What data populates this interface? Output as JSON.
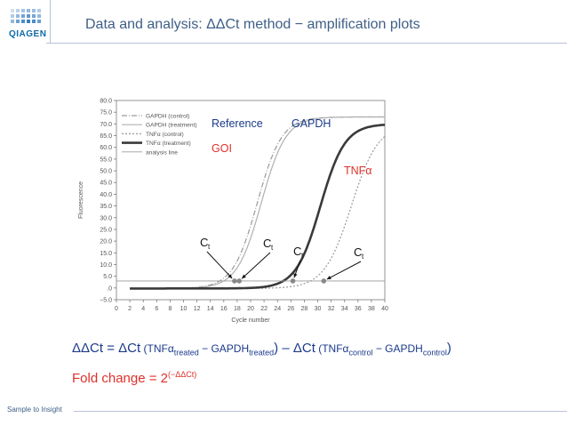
{
  "header": {
    "logo_text": "QIAGEN",
    "title": "Data and analysis: ΔΔCt method − amplification plots"
  },
  "formula": {
    "lhs": "ΔΔCt = ΔCt",
    "treated_open": " (TNFα",
    "treated_sub": "treated",
    "treated_mid": " −  GAPDH",
    "treated_sub2": "treated",
    "treated_close": ")",
    "minus": " – ΔCt",
    "control_open": " (TNFα",
    "control_sub": "control",
    "control_mid": " −  GAPDH",
    "control_sub2": "control",
    "control_close": ")"
  },
  "fold_change": {
    "text": "Fold change = 2",
    "exponent": "(−ΔΔCt)"
  },
  "footer": {
    "text": "Sample to Insight"
  },
  "chart_data": {
    "type": "line",
    "xlabel": "Cycle number",
    "ylabel": "Fluorescence",
    "xlim": [
      0,
      40
    ],
    "ylim": [
      -5,
      80
    ],
    "x_ticks": [
      0,
      2,
      4,
      6,
      8,
      10,
      12,
      14,
      16,
      18,
      20,
      22,
      24,
      26,
      28,
      30,
      32,
      34,
      36,
      38,
      40
    ],
    "y_ticks": [
      "−5.0",
      ".0",
      "5.0",
      "10.0",
      "15.0",
      "20.0",
      "25.0",
      "30.0",
      "35.0",
      "40.0",
      "45.0",
      "50.0",
      "55.0",
      "60.0",
      "65.0",
      "70.0",
      "75.0",
      "80.0"
    ],
    "legend_position": "top-left",
    "series": [
      {
        "name": "GAPDH  (control)",
        "style": "dash-dot",
        "color": "#9a9a9a",
        "midpoint": 21.0,
        "slope": 0.55,
        "plateau": 73.0
      },
      {
        "name": "GAPDH  (treatment)",
        "style": "solid",
        "color": "#b0b0b0",
        "midpoint": 21.6,
        "slope": 0.55,
        "plateau": 73.0
      },
      {
        "name": "TNFα  (control)",
        "style": "dotted",
        "color": "#9a9a9a",
        "midpoint": 35.0,
        "slope": 0.5,
        "plateau": 70.0
      },
      {
        "name": "TNFα  (treatment)",
        "style": "thick",
        "color": "#3a3a3a",
        "midpoint": 30.4,
        "slope": 0.55,
        "plateau": 70.0
      },
      {
        "name": "analysis line",
        "style": "threshold",
        "color": "#9a9a9a",
        "value": 3.0
      }
    ],
    "ct_points": [
      {
        "label": "C",
        "sub": "t",
        "x": 17.6,
        "y": 3.0
      },
      {
        "label": "C",
        "sub": "t",
        "x": 18.3,
        "y": 3.0
      },
      {
        "label": "C",
        "sub": "t",
        "x": 26.3,
        "y": 3.0
      },
      {
        "label": "C",
        "sub": "t",
        "x": 30.9,
        "y": 3.0
      }
    ],
    "annotations": {
      "reference": "Reference",
      "gapdh": "GAPDH",
      "goi": "GOI",
      "tnf": "TNFα"
    }
  }
}
